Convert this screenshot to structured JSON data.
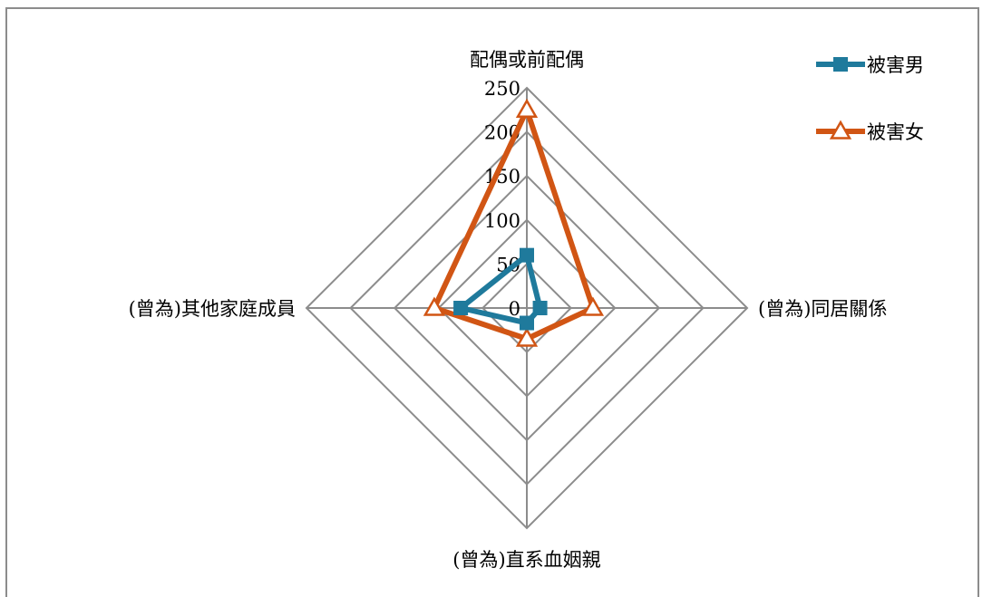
{
  "chart_data": {
    "type": "radar",
    "title": "",
    "categories": [
      "配偶或前配偶",
      "(曾為)同居關係",
      "(曾為)直系血姻親",
      "(曾為)其他家庭成員"
    ],
    "r_ticks": [
      0,
      50,
      100,
      150,
      200,
      250
    ],
    "rlim": [
      0,
      250
    ],
    "grid": true,
    "legend_position": "top-right",
    "series": [
      {
        "name": "被害男",
        "values": [
          60,
          15,
          17,
          75
        ],
        "color": "#1f7a9c",
        "marker": "square"
      },
      {
        "name": "被害女",
        "values": [
          225,
          75,
          35,
          105
        ],
        "color": "#d15514",
        "marker": "triangle-open"
      }
    ]
  }
}
